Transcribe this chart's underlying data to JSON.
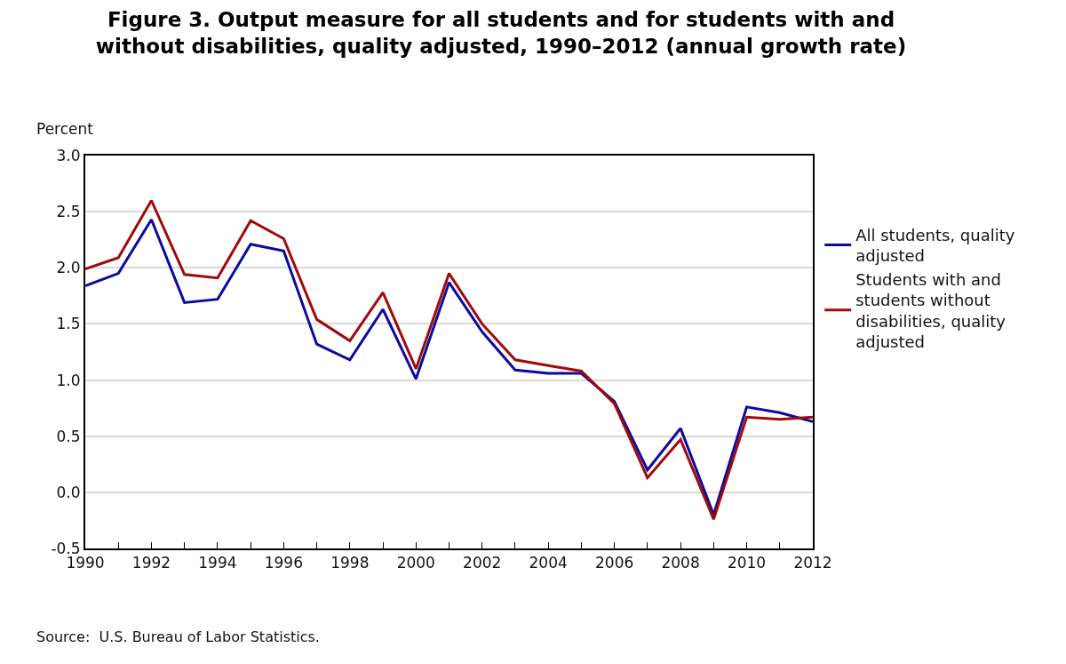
{
  "chart_data": {
    "type": "line",
    "title": "Figure 3. Output measure for all students and for students with and without disabilities, quality adjusted, 1990–2012 (annual growth rate)",
    "ylabel": "Percent",
    "x": [
      1990,
      1991,
      1992,
      1993,
      1994,
      1995,
      1996,
      1997,
      1998,
      1999,
      2000,
      2001,
      2002,
      2003,
      2004,
      2005,
      2006,
      2007,
      2008,
      2009,
      2010,
      2011,
      2012
    ],
    "series": [
      {
        "name": "All students, quality adjusted",
        "color": "#0a0aa0",
        "values": [
          1.84,
          1.95,
          2.43,
          1.69,
          1.72,
          2.21,
          2.15,
          1.32,
          1.18,
          1.63,
          1.01,
          1.87,
          1.43,
          1.09,
          1.06,
          1.06,
          0.81,
          0.2,
          0.57,
          -0.2,
          0.76,
          0.71,
          0.63
        ]
      },
      {
        "name": "Students with and students without disabilities, quality adjusted",
        "color": "#a00a0a",
        "values": [
          1.99,
          2.09,
          2.6,
          1.94,
          1.91,
          2.42,
          2.26,
          1.54,
          1.35,
          1.78,
          1.1,
          1.95,
          1.5,
          1.18,
          1.13,
          1.08,
          0.79,
          0.13,
          0.47,
          -0.24,
          0.67,
          0.65,
          0.67
        ]
      }
    ],
    "xlim": [
      1990,
      2012
    ],
    "xticks": [
      1990,
      {
        "value": 1991,
        "label": null
      },
      1992,
      {
        "value": 1993,
        "label": null
      },
      1994,
      {
        "value": 1995,
        "label": null
      },
      1996,
      {
        "value": 1997,
        "label": null
      },
      1998,
      {
        "value": 1999,
        "label": null
      },
      2000,
      {
        "value": 2001,
        "label": null
      },
      2002,
      {
        "value": 2003,
        "label": null
      },
      2004,
      {
        "value": 2005,
        "label": null
      },
      2006,
      {
        "value": 2007,
        "label": null
      },
      2008,
      {
        "value": 2009,
        "label": null
      },
      2010,
      {
        "value": 2011,
        "label": null
      },
      2012
    ],
    "ylim": [
      -0.5,
      3.0
    ],
    "yticks": [
      {
        "value": -0.5,
        "label": "-0.5"
      },
      {
        "value": 0,
        "label": "0.0"
      },
      {
        "value": 0.5,
        "label": "0.5"
      },
      {
        "value": 1,
        "label": "1.0"
      },
      {
        "value": 1.5,
        "label": "1.5"
      },
      {
        "value": 2,
        "label": "2.0"
      },
      {
        "value": 2.5,
        "label": "2.5"
      },
      {
        "value": 3,
        "label": "3.0"
      }
    ],
    "grid": "y",
    "legend": "right",
    "marker": "none",
    "line_style": "solid",
    "annotations": [
      "Source:  U.S. Bureau of Labor Statistics."
    ]
  }
}
